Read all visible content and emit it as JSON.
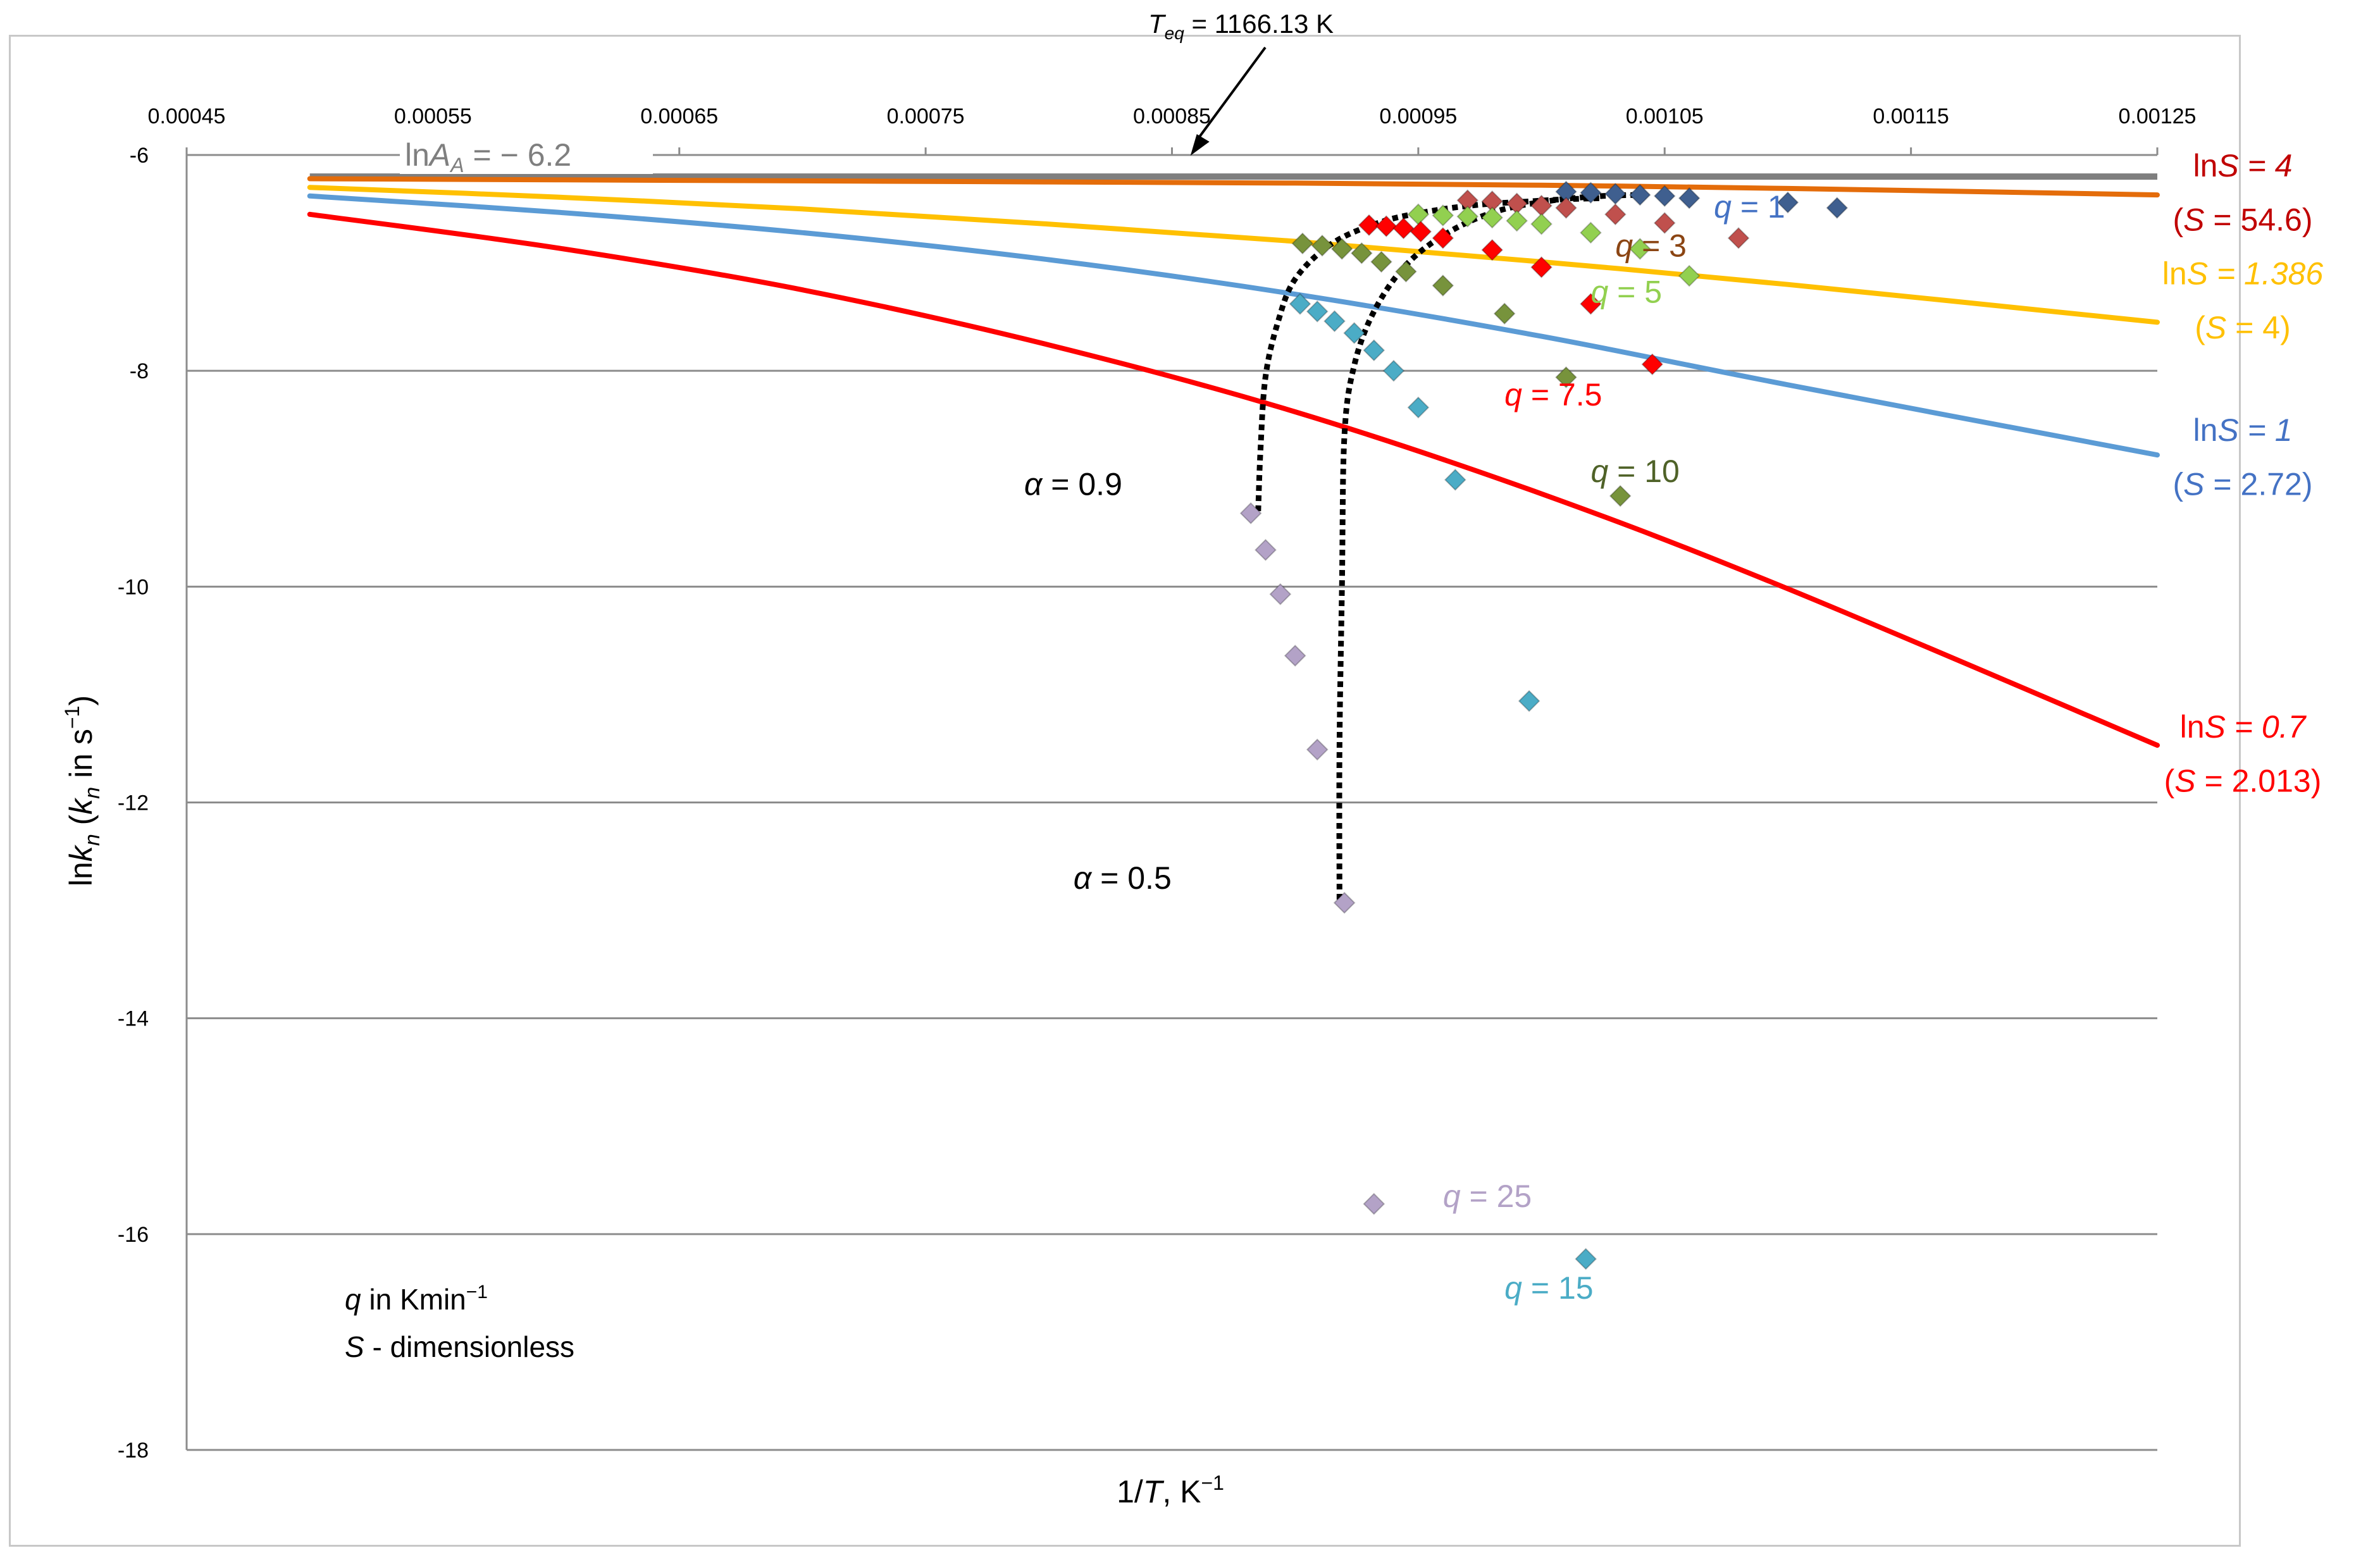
{
  "chart_data": {
    "type": "scatter",
    "title": "",
    "xlabel_parts": [
      "1/",
      "T",
      ", K",
      "−1"
    ],
    "ylabel_parts": [
      "ln",
      "k",
      "n",
      " (",
      "k",
      "n",
      " in s",
      "−1",
      ")"
    ],
    "xlim": [
      0.00045,
      0.00125
    ],
    "ylim": [
      -18,
      -6
    ],
    "x_ticks": [
      "0.00045",
      "0.00055",
      "0.00065",
      "0.00075",
      "0.00085",
      "0.00095",
      "0.00105",
      "0.00115",
      "0.00125"
    ],
    "y_ticks": [
      "-6",
      "-8",
      "-10",
      "-12",
      "-14",
      "-16",
      "-18"
    ],
    "grid": "horizontal",
    "reference_line": {
      "y": -6.2,
      "color": "#7f7f7f",
      "label_parts": [
        "ln",
        "A",
        "A",
        " = − 6.2"
      ]
    },
    "teq_annotation": {
      "label_parts": [
        "T",
        "eq",
        " = 1166.13 K"
      ],
      "x": 0.0008575
    },
    "curves": [
      {
        "name": "lnS = 4",
        "color": "#e46c0a",
        "x": [
          0.0005,
          0.0006,
          0.0007,
          0.0008,
          0.0009,
          0.001,
          0.0011,
          0.00125
        ],
        "y": [
          -6.22,
          -6.23,
          -6.24,
          -6.25,
          -6.26,
          -6.28,
          -6.31,
          -6.37
        ],
        "label_parts": [
          "ln",
          "S = 4"
        ],
        "label_color": "#c00000",
        "sublabel_parts": [
          "(",
          "S",
          " = 54.6)"
        ],
        "sublabel_color": "#c00000"
      },
      {
        "name": "lnS = 1.386",
        "color": "#ffc000",
        "x": [
          0.0005,
          0.0006,
          0.0007,
          0.0008,
          0.0009,
          0.001,
          0.0011,
          0.00125
        ],
        "y": [
          -6.3,
          -6.39,
          -6.5,
          -6.64,
          -6.8,
          -6.99,
          -7.2,
          -7.55
        ],
        "label_parts": [
          "ln",
          "S = 1.386"
        ],
        "label_color": "#ffc000",
        "sublabel_parts": [
          "(",
          "S",
          " = 4)"
        ],
        "sublabel_color": "#ffc000"
      },
      {
        "name": "lnS = 1",
        "color": "#5b9bd5",
        "x": [
          0.0005,
          0.0006,
          0.0007,
          0.0008,
          0.0009,
          0.001,
          0.0011,
          0.00125
        ],
        "y": [
          -6.38,
          -6.53,
          -6.72,
          -6.97,
          -7.29,
          -7.68,
          -8.13,
          -8.78
        ],
        "label_parts": [
          "ln",
          "S = 1"
        ],
        "label_color": "#4472c4",
        "sublabel_parts": [
          "(",
          "S",
          " = 2.72)"
        ],
        "sublabel_color": "#4472c4"
      },
      {
        "name": "lnS = 0.7",
        "color": "#ff0000",
        "x": [
          0.0005,
          0.0006,
          0.0007,
          0.0008,
          0.0009,
          0.001,
          0.0011,
          0.00125
        ],
        "y": [
          -6.55,
          -6.86,
          -7.25,
          -7.76,
          -8.38,
          -9.14,
          -10.02,
          -11.47
        ],
        "label_parts": [
          "ln",
          "S = 0.7"
        ],
        "label_color": "#ff0000",
        "sublabel_parts": [
          "(",
          "S",
          " = 2.013)"
        ],
        "sublabel_color": "#ff0000"
      }
    ],
    "series": [
      {
        "name": "q = 1",
        "label_parts": [
          "q",
          " = 1"
        ],
        "color": "#4472c4",
        "marker_color": "#3f5f8f",
        "x": [
          0.00101,
          0.00102,
          0.00103,
          0.00104,
          0.00105,
          0.00106,
          0.0011,
          0.00112
        ],
        "y": [
          -6.34,
          -6.35,
          -6.36,
          -6.37,
          -6.38,
          -6.4,
          -6.44,
          -6.49
        ],
        "label_pos": {
          "x": 0.00107,
          "y": -6.58
        }
      },
      {
        "name": "q = 3",
        "label_parts": [
          "q",
          " = 3"
        ],
        "color": "#8b4513",
        "marker_color": "#c0504d",
        "x": [
          0.00097,
          0.00098,
          0.00099,
          0.001,
          0.00101,
          0.00103,
          0.00105,
          0.00108
        ],
        "y": [
          -6.42,
          -6.43,
          -6.45,
          -6.47,
          -6.49,
          -6.55,
          -6.63,
          -6.77
        ],
        "label_pos": {
          "x": 0.00103,
          "y": -6.94
        }
      },
      {
        "name": "q = 5",
        "label_parts": [
          "q",
          " = 5"
        ],
        "color": "#92d050",
        "marker_color": "#92d050",
        "x": [
          0.00095,
          0.00096,
          0.00097,
          0.00098,
          0.00099,
          0.001,
          0.00102,
          0.00104,
          0.00106
        ],
        "y": [
          -6.55,
          -6.56,
          -6.57,
          -6.58,
          -6.61,
          -6.64,
          -6.72,
          -6.87,
          -7.12
        ],
        "label_pos": {
          "x": 0.00102,
          "y": -7.37
        }
      },
      {
        "name": "q = 7.5",
        "label_parts": [
          "q",
          " = 7.5"
        ],
        "color": "#ff0000",
        "marker_color": "#ff0000",
        "x": [
          0.00093,
          0.000937,
          0.000944,
          0.000951,
          0.00096,
          0.00098,
          0.001,
          0.00102,
          0.001045
        ],
        "y": [
          -6.65,
          -6.66,
          -6.68,
          -6.71,
          -6.77,
          -6.88,
          -7.04,
          -7.38,
          -7.94
        ],
        "label_pos": {
          "x": 0.000985,
          "y": -8.32
        }
      },
      {
        "name": "q = 10",
        "label_parts": [
          "q",
          " = 10"
        ],
        "color": "#4f6228",
        "marker_color": "#77933c",
        "x": [
          0.000903,
          0.000911,
          0.000919,
          0.000927,
          0.000935,
          0.000945,
          0.00096,
          0.000985,
          0.00101,
          0.001032
        ],
        "y": [
          -6.82,
          -6.84,
          -6.87,
          -6.91,
          -6.99,
          -7.08,
          -7.21,
          -7.47,
          -8.06,
          -9.16
        ],
        "label_pos": {
          "x": 0.00102,
          "y": -9.03
        }
      },
      {
        "name": "q = 15",
        "label_parts": [
          "q",
          " = 15"
        ],
        "color": "#4bacc6",
        "marker_color": "#4bacc6",
        "x": [
          0.000902,
          0.000909,
          0.000916,
          0.000924,
          0.000932,
          0.00094,
          0.00095,
          0.000965,
          0.000995,
          0.001018
        ],
        "y": [
          -7.38,
          -7.45,
          -7.54,
          -7.65,
          -7.81,
          -8.0,
          -8.34,
          -9.01,
          -11.06,
          -16.23
        ],
        "label_pos": {
          "x": 0.000985,
          "y": -16.6
        }
      },
      {
        "name": "q = 25",
        "label_parts": [
          "q",
          " = 25"
        ],
        "color": "#b3a2c7",
        "marker_color": "#b3a2c7",
        "x": [
          0.000882,
          0.000888,
          0.000894,
          0.0009,
          0.000909,
          0.00092,
          0.000932
        ],
        "y": [
          -9.32,
          -9.66,
          -10.07,
          -10.64,
          -11.51,
          -12.93,
          -15.72
        ],
        "label_pos": {
          "x": 0.00096,
          "y": -15.75
        }
      }
    ],
    "alpha_curves": [
      {
        "label_parts": [
          "α",
          " = 0.9"
        ],
        "x": [
          0.000885,
          0.000886,
          0.000888,
          0.000893,
          0.0009,
          0.000915,
          0.000935,
          0.000955,
          0.000975,
          0.000995,
          0.00101,
          0.001025
        ],
        "y": [
          -9.3,
          -8.7,
          -8.05,
          -7.55,
          -7.15,
          -6.82,
          -6.62,
          -6.52,
          -6.46,
          -6.43,
          -6.41,
          -6.4
        ],
        "label_pos": {
          "x": 0.00079,
          "y": -9.15
        }
      },
      {
        "label_parts": [
          "α",
          " = 0.5"
        ],
        "x": [
          0.000918,
          0.000918,
          0.000919,
          0.00092,
          0.000924,
          0.000932,
          0.000945,
          0.000962,
          0.000982,
          0.001005,
          0.001025,
          0.00104
        ],
        "y": [
          -12.9,
          -11.5,
          -10.0,
          -8.6,
          -7.95,
          -7.45,
          -7.02,
          -6.72,
          -6.52,
          -6.42,
          -6.38,
          -6.37
        ],
        "label_pos": {
          "x": 0.00081,
          "y": -12.8
        }
      }
    ],
    "notes": [
      {
        "parts": [
          "q",
          " in Kmin",
          "−1"
        ]
      },
      {
        "parts": [
          "S",
          " - dimensionless"
        ]
      }
    ]
  }
}
